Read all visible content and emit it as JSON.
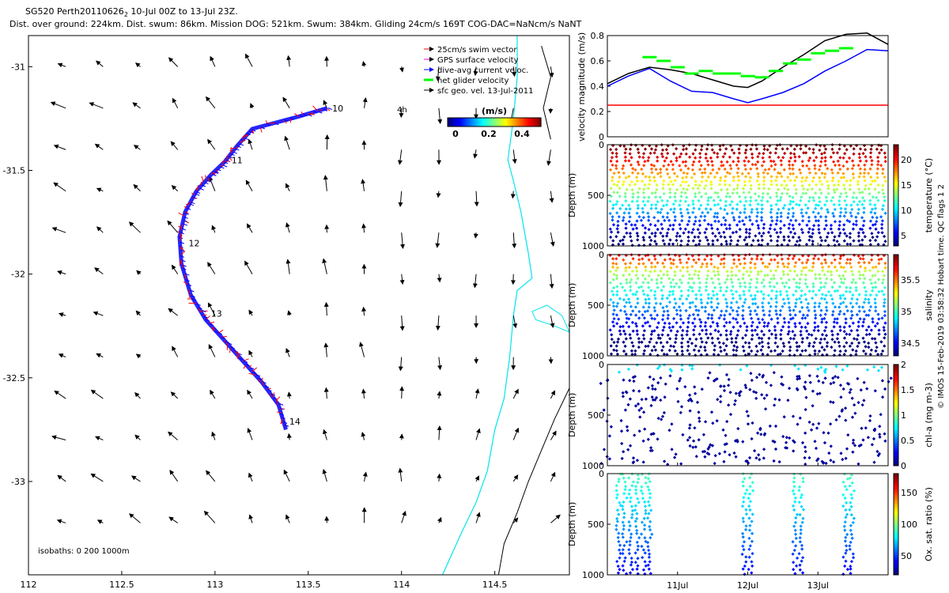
{
  "header": {
    "line1_prefix": "SG520 Perth20110626",
    "line1_sub": "2",
    "line1_suffix": " 10-Jul 00Z to 13-Jul 23Z.",
    "line2": "Dist. over ground: 224km. Dist. swum: 86km. Mission DOG: 521km. Swum: 384km. Gliding 24cm/s 169T COG-DAC=NaNcm/s NaNT"
  },
  "colors": {
    "swim_vector": "#ff0000",
    "gps_velocity": "#ff00ff",
    "dive_avg": "#0000ff",
    "net_glider": "#00ff00",
    "coastline": "#00e5ee",
    "isobath": "#000000"
  },
  "map": {
    "xlim": [
      112.0,
      114.9
    ],
    "ylim": [
      -33.45,
      -30.85
    ],
    "x_ticks": [
      112,
      112.5,
      113,
      113.5,
      114,
      114.5
    ],
    "x_tick_labels": [
      "112",
      "112.5",
      "113",
      "113.5",
      "114",
      "114.5"
    ],
    "y_ticks": [
      -31,
      -31.5,
      -32,
      -32.5,
      -33
    ],
    "y_tick_labels": [
      "-31",
      "-31.5",
      "-32",
      "-32.5",
      "-33"
    ],
    "legend": [
      "25cm/s swim vector",
      "GPS surface velocity",
      "dive-avg current veloc.",
      "net glider velocity",
      "sfc geo. vel. 13-Jul-2011"
    ],
    "colorbar_label": "(m/s)",
    "colorbar_ticks": [
      "0",
      "0.2",
      "0.4"
    ],
    "scale_label": "4h",
    "isobaths_label": "isobaths: 0   200   1000m",
    "track": {
      "lon": [
        113.6,
        113.45,
        113.2,
        113.12,
        113.05,
        112.98,
        112.9,
        112.84,
        112.81,
        112.82,
        112.87,
        112.95,
        113.05,
        113.15,
        113.25,
        113.34,
        113.38
      ],
      "lat": [
        -31.2,
        -31.24,
        -31.3,
        -31.38,
        -31.46,
        -31.52,
        -31.6,
        -31.7,
        -31.82,
        -31.95,
        -32.1,
        -32.22,
        -32.32,
        -32.42,
        -32.52,
        -32.63,
        -32.75
      ]
    },
    "day_labels": [
      {
        "label": "10",
        "lon": 113.62,
        "lat": -31.2
      },
      {
        "label": "11",
        "lon": 113.08,
        "lat": -31.45
      },
      {
        "label": "12",
        "lon": 112.85,
        "lat": -31.85
      },
      {
        "label": "13",
        "lon": 112.97,
        "lat": -32.19
      },
      {
        "label": "14",
        "lon": 113.39,
        "lat": -32.71
      }
    ]
  },
  "velocity_panel": {
    "ylabel": "velocity magnitude (m/s)",
    "ylim": [
      0,
      0.8
    ],
    "y_ticks": [
      "0",
      "0.2",
      "0.4",
      "0.6",
      "0.8"
    ],
    "x_range_days": [
      10.0,
      14.0
    ],
    "gps_black": {
      "t": [
        10.0,
        10.3,
        10.6,
        10.9,
        11.2,
        11.5,
        11.8,
        12.0,
        12.2,
        12.5,
        12.8,
        13.1,
        13.4,
        13.7,
        14.0
      ],
      "v": [
        0.42,
        0.5,
        0.55,
        0.53,
        0.5,
        0.45,
        0.4,
        0.39,
        0.44,
        0.55,
        0.65,
        0.76,
        0.81,
        0.82,
        0.73
      ]
    },
    "dive_avg_blue": {
      "t": [
        10.0,
        10.3,
        10.6,
        10.9,
        11.2,
        11.5,
        11.8,
        12.0,
        12.2,
        12.5,
        12.8,
        13.1,
        13.4,
        13.7,
        14.0
      ],
      "v": [
        0.4,
        0.48,
        0.54,
        0.44,
        0.36,
        0.35,
        0.3,
        0.27,
        0.3,
        0.35,
        0.42,
        0.52,
        0.6,
        0.69,
        0.68
      ]
    },
    "net_glider_green": {
      "t": [
        10.5,
        10.7,
        10.9,
        11.1,
        11.3,
        11.5,
        11.7,
        11.9,
        12.1,
        12.3,
        12.5,
        12.7,
        12.9,
        13.1,
        13.3
      ],
      "v": [
        0.63,
        0.6,
        0.55,
        0.5,
        0.52,
        0.5,
        0.5,
        0.48,
        0.47,
        0.52,
        0.58,
        0.61,
        0.66,
        0.68,
        0.7
      ]
    },
    "reference_red": 0.25
  },
  "depth_panels": [
    {
      "name": "temperature",
      "cbar_label": "temperature (°C)",
      "cbar_ticks": [
        "5",
        "10",
        "15",
        "20"
      ],
      "cbar_range": [
        3,
        23
      ],
      "ylabel": "Depth (m)",
      "y_ticks": [
        "0",
        "500",
        "1000"
      ],
      "profiles": "all"
    },
    {
      "name": "salinity",
      "cbar_label": "salinity",
      "cbar_ticks": [
        "34.5",
        "35",
        "35.5"
      ],
      "cbar_range": [
        34.3,
        35.9
      ],
      "ylabel": "Depth (m)",
      "y_ticks": [
        "0",
        "500",
        "1000"
      ],
      "profiles": "all"
    },
    {
      "name": "chl-a",
      "cbar_label": "chl-a (mg m-3)",
      "cbar_ticks": [
        "0",
        "0.5",
        "1",
        "1.5",
        "2"
      ],
      "cbar_range": [
        0,
        2
      ],
      "ylabel": "Depth (m)",
      "y_ticks": [
        "0",
        "500",
        "1000"
      ],
      "profiles": "sparse"
    },
    {
      "name": "oxygen",
      "cbar_label": "Ox. sat. ratio (%)",
      "cbar_ticks": [
        "50",
        "100",
        "150"
      ],
      "cbar_range": [
        20,
        180
      ],
      "ylabel": "Depth (m)",
      "y_ticks": [
        "0",
        "500",
        "1000"
      ],
      "profiles": "groups"
    }
  ],
  "time_axis": {
    "labels": [
      "11Jul",
      "12Jul",
      "13Jul"
    ]
  },
  "side_note": "© IMOS 15-Feb-2019 03:58:32 Hobart time. QC flags 1  2"
}
